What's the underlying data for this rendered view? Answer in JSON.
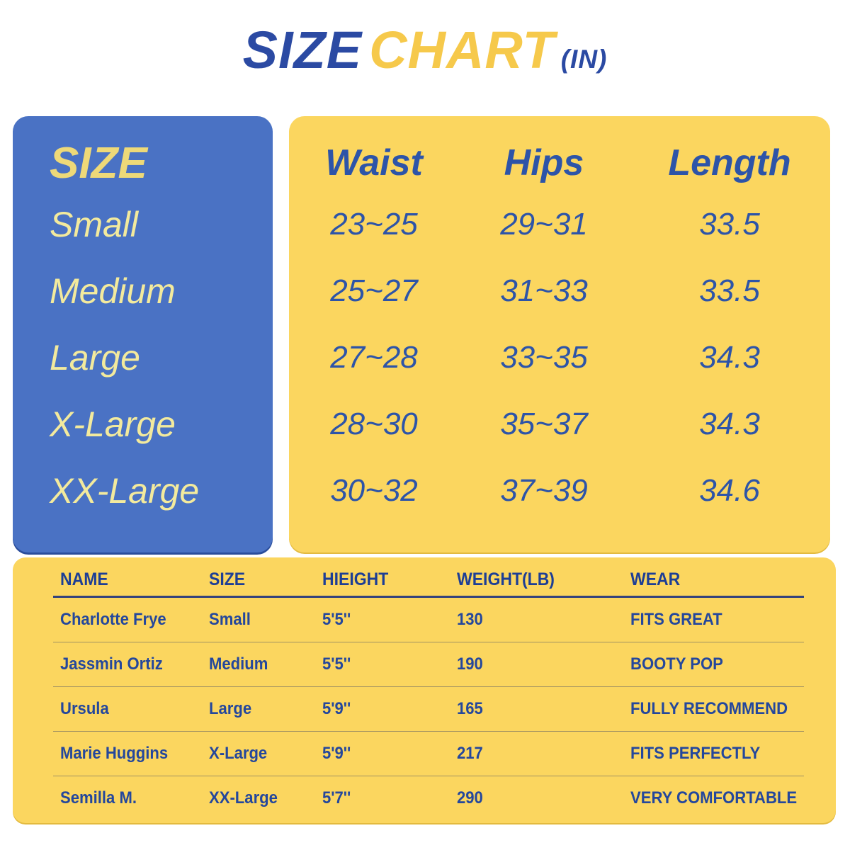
{
  "title": {
    "word1": "SIZE",
    "word2": "CHART",
    "unit": "(IN)"
  },
  "size_panel": {
    "header": "SIZE",
    "sizes": [
      "Small",
      "Medium",
      "Large",
      "X-Large",
      "XX-Large"
    ]
  },
  "measurements_panel": {
    "columns": [
      "Waist",
      "Hips",
      "Length"
    ],
    "rows": [
      [
        "23~25",
        "29~31",
        "33.5"
      ],
      [
        "25~27",
        "31~33",
        "33.5"
      ],
      [
        "27~28",
        "33~35",
        "34.3"
      ],
      [
        "28~30",
        "35~37",
        "34.3"
      ],
      [
        "30~32",
        "37~39",
        "34.6"
      ]
    ]
  },
  "reviews_table": {
    "columns": [
      "NAME",
      "SIZE",
      "HIEIGHT",
      "WEIGHT(LB)",
      "WEAR"
    ],
    "rows": [
      [
        "Charlotte Frye",
        "Small",
        "5'5''",
        "130",
        "FITS GREAT"
      ],
      [
        "Jassmin Ortiz",
        "Medium",
        "5'5''",
        "190",
        "BOOTY POP"
      ],
      [
        "Ursula",
        "Large",
        "5'9''",
        "165",
        "FULLY RECOMMEND"
      ],
      [
        "Marie Huggins",
        "X-Large",
        "5'9''",
        "217",
        "FITS PERFECTLY"
      ],
      [
        "Semilla M.",
        "XX-Large",
        "5'7''",
        "290",
        "VERY COMFORTABLE"
      ]
    ]
  },
  "colors": {
    "panel_blue": "#4a72c4",
    "panel_yellow": "#fbd65f",
    "title_navy": "#2b4aa3",
    "title_gold": "#f6c94b",
    "measurement_text": "#2d54a8",
    "size_header_gold": "#eed978",
    "size_label_pale_yellow": "#f3ea9d",
    "review_text_navy": "#24479c"
  },
  "chart_data": [
    {
      "type": "table",
      "title": "SIZE CHART (IN)",
      "columns": [
        "SIZE",
        "Waist",
        "Hips",
        "Length"
      ],
      "rows": [
        [
          "Small",
          "23~25",
          "29~31",
          "33.5"
        ],
        [
          "Medium",
          "25~27",
          "31~33",
          "33.5"
        ],
        [
          "Large",
          "27~28",
          "33~35",
          "34.3"
        ],
        [
          "X-Large",
          "28~30",
          "35~37",
          "34.3"
        ],
        [
          "XX-Large",
          "30~32",
          "37~39",
          "34.6"
        ]
      ]
    },
    {
      "type": "table",
      "title": "Fit feedback",
      "columns": [
        "NAME",
        "SIZE",
        "HIEIGHT",
        "WEIGHT(LB)",
        "WEAR"
      ],
      "rows": [
        [
          "Charlotte Frye",
          "Small",
          "5'5''",
          "130",
          "FITS GREAT"
        ],
        [
          "Jassmin Ortiz",
          "Medium",
          "5'5''",
          "190",
          "BOOTY POP"
        ],
        [
          "Ursula",
          "Large",
          "5'9''",
          "165",
          "FULLY RECOMMEND"
        ],
        [
          "Marie Huggins",
          "X-Large",
          "5'9''",
          "217",
          "FITS PERFECTLY"
        ],
        [
          "Semilla M.",
          "XX-Large",
          "5'7''",
          "290",
          "VERY COMFORTABLE"
        ]
      ]
    }
  ]
}
